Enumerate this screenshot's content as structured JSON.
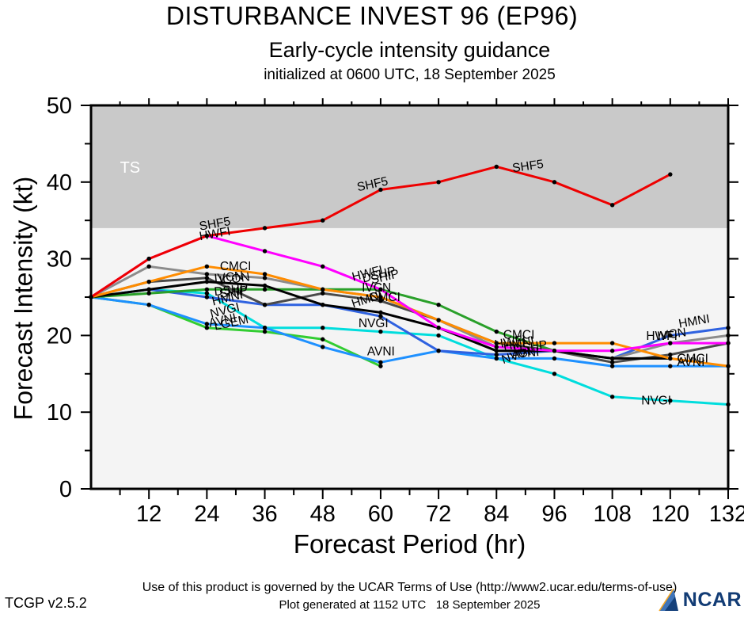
{
  "header": {
    "title": "DISTURBANCE INVEST 96 (EP96)",
    "subtitle": "Early-cycle intensity guidance",
    "init_line": "initialized at 0600 UTC, 18 September 2025"
  },
  "footer": {
    "terms": "Use of this product is governed by the UCAR Terms of Use (http://www2.ucar.edu/terms-of-use)",
    "version": "TCGP v2.5.2",
    "generated": "Plot generated at 1152 UTC   18 September 2025",
    "logo_text": "NCAR"
  },
  "chart_data": {
    "type": "line",
    "title": "DISTURBANCE INVEST 96 (EP96) early-cycle intensity guidance",
    "xlabel": "Forecast Period (hr)",
    "ylabel": "Forecast Intensity (kt)",
    "xlim": [
      0,
      132
    ],
    "ylim": [
      0,
      50
    ],
    "x_ticks_major": [
      12,
      24,
      36,
      48,
      60,
      72,
      84,
      96,
      108,
      120,
      132
    ],
    "x_ticks_minor_step": 6,
    "y_ticks_major": [
      0,
      10,
      20,
      30,
      40,
      50
    ],
    "y_ticks_minor_step": 5,
    "grid": false,
    "legend": "inline-labels",
    "plot_bg": "#f4f4f4",
    "ts_band": {
      "label": "TS",
      "from_kt": 34,
      "to_kt": 50,
      "color": "#c9c9c9",
      "label_color": "#ffffff"
    },
    "hours": [
      0,
      12,
      24,
      36,
      48,
      60,
      72,
      84,
      96,
      108,
      120,
      132
    ],
    "series": [
      {
        "name": "LGEM",
        "color": "#32cd32",
        "values": [
          25,
          24,
          21,
          20.5,
          19.5,
          16,
          null,
          null,
          null,
          null,
          null,
          null
        ]
      },
      {
        "name": "NVGI",
        "color": "#00dddd",
        "values": [
          25,
          26,
          25.5,
          21,
          21,
          20.5,
          20,
          17,
          15,
          12,
          11.5,
          11
        ]
      },
      {
        "name": "AVNI",
        "color": "#1e90ff",
        "values": [
          25,
          24,
          21.5,
          21,
          18.5,
          16.5,
          18,
          17,
          17,
          16,
          16,
          16
        ]
      },
      {
        "name": "HMNI",
        "color": "#2f62e0",
        "values": [
          25,
          26,
          25,
          24,
          24,
          22.5,
          18,
          17.5,
          18,
          17,
          20,
          21
        ]
      },
      {
        "name": "SHIP",
        "color": "#2aa02a",
        "values": [
          25,
          25.5,
          26,
          26,
          26,
          26,
          24,
          20.5,
          18,
          null,
          null,
          null
        ]
      },
      {
        "name": "ICON",
        "color": "#4a4a4a",
        "values": [
          25,
          27,
          27.5,
          24,
          25.5,
          24.5,
          22,
          19,
          18,
          16.5,
          17.5,
          19
        ]
      },
      {
        "name": "IVCN",
        "color": "#8c8c8c",
        "values": [
          25,
          29,
          28,
          27.5,
          26,
          25,
          22,
          18.5,
          18,
          17,
          19,
          20
        ]
      },
      {
        "name": "DSHP",
        "color": "#000000",
        "values": [
          25,
          26,
          27,
          26.5,
          24,
          23,
          21,
          18,
          18,
          17,
          17,
          null
        ]
      },
      {
        "name": "CMCI",
        "color": "#ff8c00",
        "values": [
          25,
          27,
          29,
          28,
          26,
          25,
          22,
          19,
          19,
          19,
          17,
          16
        ]
      },
      {
        "name": "HWFI",
        "color": "#ff00ff",
        "values": [
          25,
          30,
          33,
          31,
          29,
          26,
          21,
          18.5,
          18,
          18,
          19,
          19
        ]
      },
      {
        "name": "SHF5",
        "color": "#ee0000",
        "values": [
          25,
          30,
          33,
          34,
          35,
          39,
          40,
          42,
          40,
          37,
          41,
          null
        ]
      }
    ],
    "labels": [
      {
        "t": "SHF5",
        "hr": 22.6,
        "kt": 33.7,
        "rot": -10
      },
      {
        "t": "HWFI",
        "hr": 22.6,
        "kt": 32.4,
        "rot": -10
      },
      {
        "t": "CMCI",
        "hr": 26.7,
        "kt": 28.5,
        "rot": 0
      },
      {
        "t": "IVCN",
        "hr": 25.6,
        "kt": 26.9,
        "rot": -6
      },
      {
        "t": "ICON",
        "hr": 26.7,
        "kt": 26.6,
        "rot": -8
      },
      {
        "t": "DSHP",
        "hr": 25.6,
        "kt": 25.2,
        "rot": -6
      },
      {
        "t": "SHIP",
        "hr": 26.7,
        "kt": 24.9,
        "rot": -8
      },
      {
        "t": "HMNI",
        "hr": 25.3,
        "kt": 23.9,
        "rot": -14
      },
      {
        "t": "NVGI",
        "hr": 24.9,
        "kt": 22.3,
        "rot": -14
      },
      {
        "t": "AVNI",
        "hr": 24.6,
        "kt": 21.1,
        "rot": -12
      },
      {
        "t": "LGEM",
        "hr": 25.7,
        "kt": 20.7,
        "rot": -12
      },
      {
        "t": "SHF5",
        "hr": 55.3,
        "kt": 38.8,
        "rot": -12
      },
      {
        "t": "HWFI",
        "hr": 54.3,
        "kt": 27.1,
        "rot": -14
      },
      {
        "t": "DSHP",
        "hr": 56.4,
        "kt": 26.9,
        "rot": -14
      },
      {
        "t": "SHIP",
        "hr": 58.2,
        "kt": 26.7,
        "rot": -14
      },
      {
        "t": "IVCN",
        "hr": 56.1,
        "kt": 25.7,
        "rot": 0
      },
      {
        "t": "CMCI",
        "hr": 57.6,
        "kt": 24.5,
        "rot": 0
      },
      {
        "t": "HMNI",
        "hr": 54.3,
        "kt": 23.6,
        "rot": -18
      },
      {
        "t": "NVGI",
        "hr": 55.4,
        "kt": 21.1,
        "rot": 0
      },
      {
        "t": "AVNI",
        "hr": 57.2,
        "kt": 17.4,
        "rot": 0
      },
      {
        "t": "SHF5",
        "hr": 87.4,
        "kt": 41.3,
        "rot": -8
      },
      {
        "t": "CMCI",
        "hr": 85.4,
        "kt": 19.6,
        "rot": 0
      },
      {
        "t": "HWFI",
        "hr": 83.8,
        "kt": 18.3,
        "rot": -10
      },
      {
        "t": "HMNI",
        "hr": 85.6,
        "kt": 18.0,
        "rot": -12
      },
      {
        "t": "DSHP",
        "hr": 87.6,
        "kt": 17.7,
        "rot": -8
      },
      {
        "t": "AVNI",
        "hr": 87.2,
        "kt": 17.0,
        "rot": -6
      },
      {
        "t": "NVGI",
        "hr": 85.4,
        "kt": 16.3,
        "rot": -18
      },
      {
        "t": "HMNI",
        "hr": 121.9,
        "kt": 21.0,
        "rot": -10
      },
      {
        "t": "HWFI",
        "hr": 115.0,
        "kt": 19.4,
        "rot": 0
      },
      {
        "t": "IVCN",
        "hr": 117.4,
        "kt": 19.4,
        "rot": -8
      },
      {
        "t": "CMCI",
        "hr": 121.4,
        "kt": 16.5,
        "rot": 0
      },
      {
        "t": "AVNI",
        "hr": 121.4,
        "kt": 16.0,
        "rot": 0
      },
      {
        "t": "NVGI",
        "hr": 114.0,
        "kt": 11.0,
        "rot": 0
      }
    ]
  }
}
